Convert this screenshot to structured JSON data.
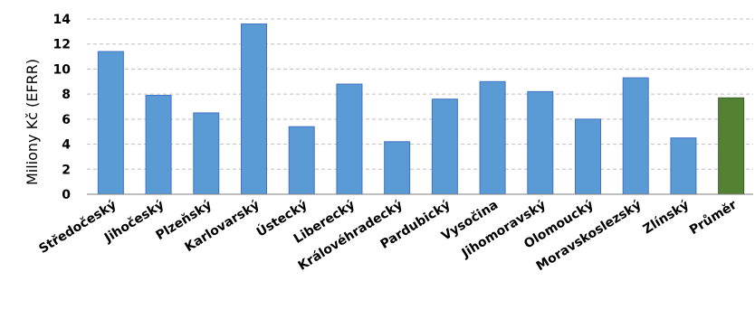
{
  "chart_data": {
    "type": "bar",
    "title": "",
    "xlabel": "",
    "ylabel": "Miliony Kč (EFRR)",
    "ylim": [
      0,
      14
    ],
    "yticks": [
      0,
      2,
      4,
      6,
      8,
      10,
      12,
      14
    ],
    "grid": true,
    "categories": [
      "Středočeský",
      "Jihočeský",
      "Plzeňský",
      "Karlovarský",
      "Ústecký",
      "Liberecký",
      "Královéhradecký",
      "Pardubický",
      "Vysočina",
      "Jihomoravský",
      "Olomoucký",
      "Moravskoslezský",
      "Zlínský",
      "Průměr"
    ],
    "values": [
      11.4,
      7.9,
      6.5,
      13.6,
      5.4,
      8.8,
      4.2,
      7.6,
      9.0,
      8.2,
      6.0,
      9.3,
      4.5,
      7.7
    ],
    "colors": [
      "#5B9BD5",
      "#5B9BD5",
      "#5B9BD5",
      "#5B9BD5",
      "#5B9BD5",
      "#5B9BD5",
      "#5B9BD5",
      "#5B9BD5",
      "#5B9BD5",
      "#5B9BD5",
      "#5B9BD5",
      "#5B9BD5",
      "#5B9BD5",
      "#548235"
    ],
    "stroke_colors": [
      "#4472C4",
      "#4472C4",
      "#4472C4",
      "#4472C4",
      "#4472C4",
      "#4472C4",
      "#4472C4",
      "#4472C4",
      "#4472C4",
      "#4472C4",
      "#4472C4",
      "#4472C4",
      "#4472C4",
      "#3A5F25"
    ]
  }
}
